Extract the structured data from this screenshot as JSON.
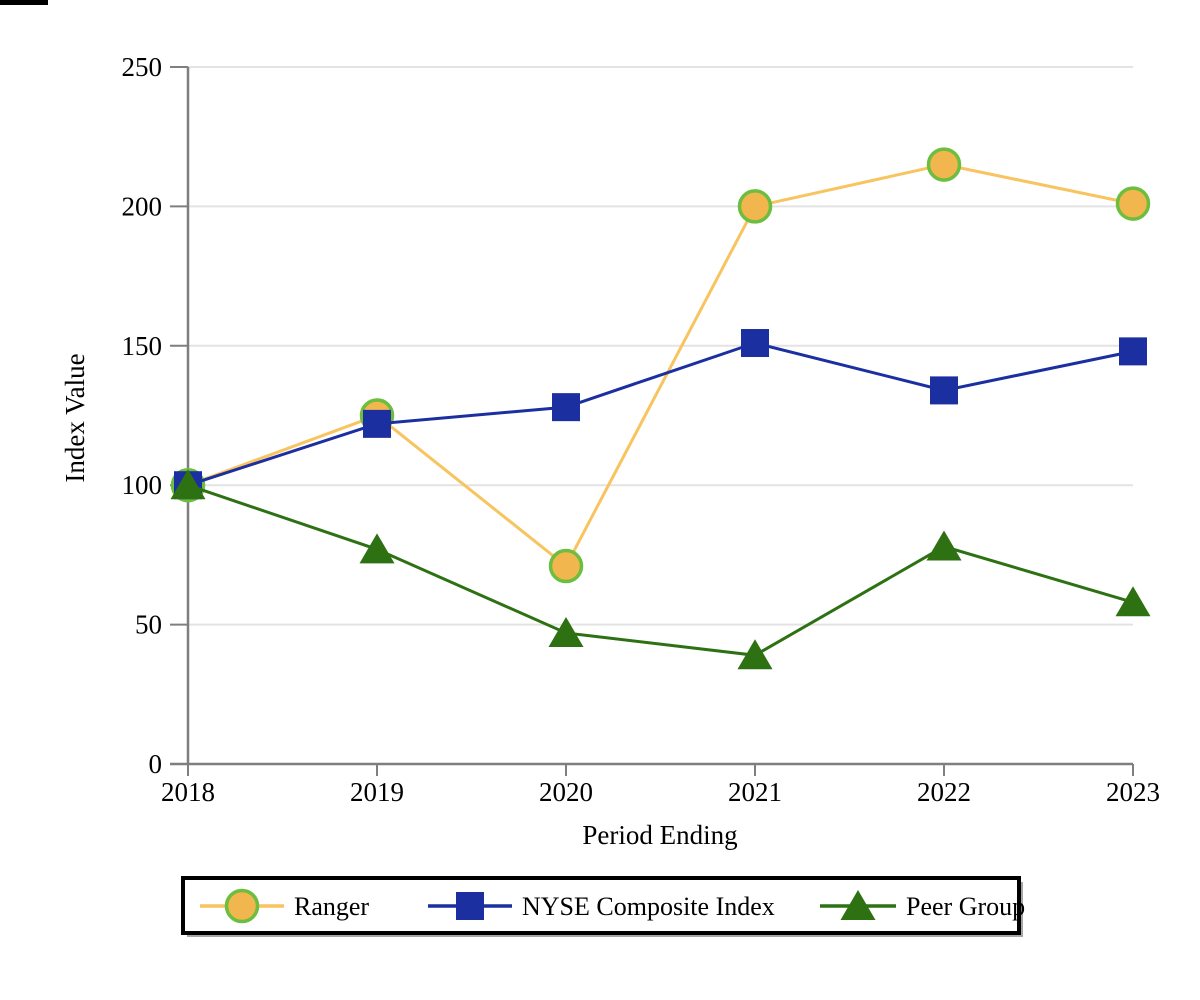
{
  "chart_data": {
    "type": "line",
    "title": "",
    "xlabel": "Period Ending",
    "ylabel": "Index Value",
    "x_categories": [
      "2018",
      "2019",
      "2020",
      "2021",
      "2022",
      "2023"
    ],
    "yticks": [
      0,
      50,
      100,
      150,
      200,
      250
    ],
    "ylim": [
      0,
      250
    ],
    "grid": "horizontal-light",
    "legend_position": "bottom-boxed",
    "series": [
      {
        "name": "Ranger",
        "marker": "circle",
        "line_color": "#F7C45F",
        "marker_fill": "#F1B64D",
        "marker_stroke": "#6CBE3E",
        "values": [
          100,
          125,
          71,
          200,
          215,
          201
        ]
      },
      {
        "name": "NYSE Composite Index",
        "marker": "square",
        "line_color": "#1B2FA0",
        "marker_fill": "#1B2FA0",
        "marker_stroke": "#1B2FA0",
        "values": [
          100,
          122,
          128,
          151,
          134,
          148
        ]
      },
      {
        "name": "Peer Group",
        "marker": "triangle",
        "line_color": "#2D7113",
        "marker_fill": "#2D7113",
        "marker_stroke": "#2D7113",
        "values": [
          100,
          77,
          47,
          39,
          78,
          58
        ]
      }
    ],
    "colors": {
      "axis": "#7F7F7F",
      "gridline": "#E3E3E3",
      "text": "#000000",
      "legend_border": "#000000",
      "legend_shadow": "#A6A6A6",
      "background": "#FFFFFF"
    }
  }
}
